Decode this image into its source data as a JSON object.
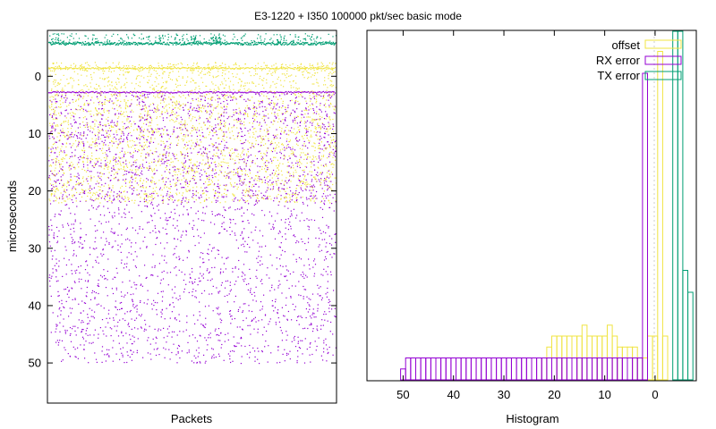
{
  "title": "E3-1220 + I350 100000 pkt/sec basic mode",
  "colors": {
    "offset": "#f0e442",
    "rx_error": "#9400d3",
    "tx_error": "#009e73",
    "axis": "#000000",
    "zero_line": "#bbbbbb"
  },
  "chart_data": [
    {
      "type": "scatter",
      "panel": "left",
      "xlabel": "Packets",
      "ylabel": "microseconds",
      "ylim": [
        -8,
        57
      ],
      "y_reversed": true,
      "yticks": [
        0,
        10,
        20,
        30,
        40,
        50
      ],
      "ytick_labels": [
        "0",
        "10",
        "20",
        "30",
        "40",
        "50"
      ],
      "grid": false,
      "series": [
        {
          "name": "offset",
          "color": "#f0e442",
          "dense_line_y": -1.5,
          "scatter_y_range": [
            -2,
            22
          ]
        },
        {
          "name": "RX error",
          "color": "#9400d3",
          "dense_line_y": 2.7,
          "scatter_y_range": [
            3,
            50
          ]
        },
        {
          "name": "TX error",
          "color": "#009e73",
          "dense_line_y": -5.8,
          "scatter_y_range": [
            -7.5,
            -5.5
          ]
        }
      ]
    },
    {
      "type": "bar",
      "panel": "right",
      "histogram": true,
      "xlabel": "Histogram",
      "xlim": [
        57,
        -8
      ],
      "x_reversed": true,
      "xticks": [
        50,
        40,
        30,
        20,
        10,
        0
      ],
      "xtick_labels": [
        "50",
        "40",
        "30",
        "20",
        "10",
        "0"
      ],
      "legend": {
        "placement": "top-right",
        "entries": [
          "offset",
          "RX error",
          "TX error"
        ]
      },
      "series": [
        {
          "name": "offset",
          "color": "#f0e442",
          "x": [
            22,
            21,
            20,
            19,
            18,
            17,
            16,
            15,
            14,
            13,
            12,
            11,
            10,
            9,
            8,
            7,
            6,
            5,
            4,
            3,
            2,
            1,
            0,
            -1,
            -2
          ],
          "values": [
            1,
            1.5,
            2,
            2,
            2,
            2,
            2,
            2,
            2.5,
            2,
            2,
            2,
            2,
            2.5,
            2,
            1.5,
            1.5,
            1.5,
            1.5,
            1,
            1,
            2,
            2,
            15,
            2
          ]
        },
        {
          "name": "RX error",
          "color": "#9400d3",
          "x": [
            50,
            49,
            48,
            47,
            46,
            45,
            44,
            43,
            42,
            41,
            40,
            39,
            38,
            37,
            36,
            35,
            34,
            33,
            32,
            31,
            30,
            29,
            28,
            27,
            26,
            25,
            24,
            23,
            22,
            21,
            20,
            19,
            18,
            17,
            16,
            15,
            14,
            13,
            12,
            11,
            10,
            9,
            8,
            7,
            6,
            5,
            4,
            3,
            2
          ],
          "values": [
            0.5,
            1,
            1,
            1,
            1,
            1,
            1,
            1,
            1,
            1,
            1,
            1,
            1,
            1,
            1,
            1,
            1,
            1,
            1,
            1,
            1,
            1,
            1,
            1,
            1,
            1,
            1,
            1,
            1,
            1,
            1,
            1,
            1,
            1,
            1,
            1,
            1,
            1,
            1,
            1,
            1,
            1,
            1,
            1,
            1,
            1,
            1,
            1,
            14
          ]
        },
        {
          "name": "TX error",
          "color": "#009e73",
          "x": [
            -4,
            -5,
            -6,
            -7
          ],
          "values": [
            24,
            100,
            5,
            4
          ]
        }
      ]
    }
  ]
}
